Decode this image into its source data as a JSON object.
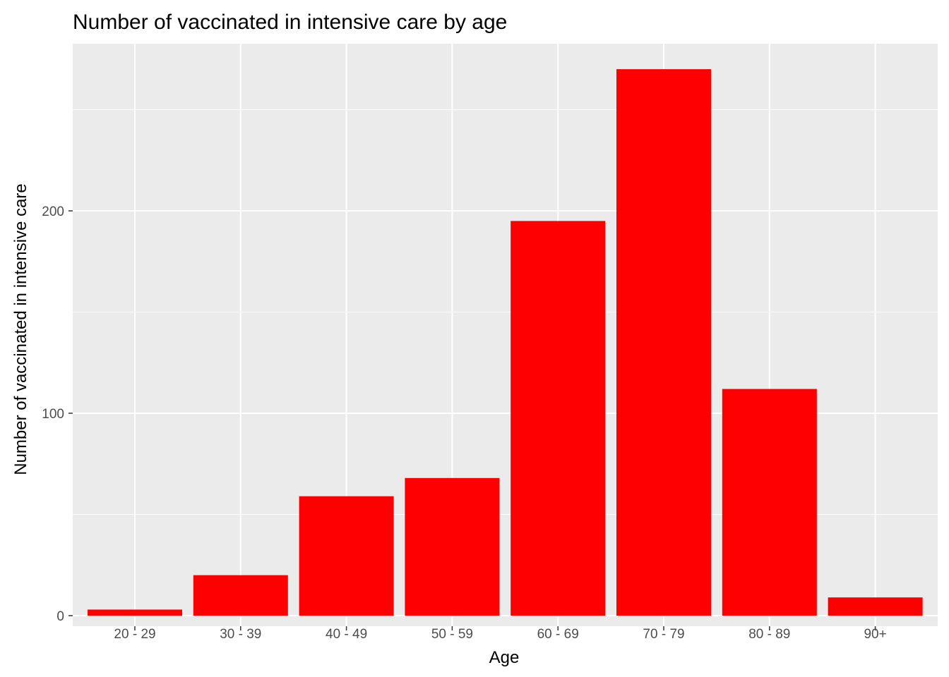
{
  "chart_data": {
    "type": "bar",
    "title": "Number of vaccinated in intensive care by age",
    "xlabel": "Age",
    "ylabel": "Number of vaccinated in intensive care",
    "categories": [
      "20 - 29",
      "30 - 39",
      "40 - 49",
      "50 - 59",
      "60 - 69",
      "70 - 79",
      "80 - 89",
      "90+"
    ],
    "values": [
      3,
      20,
      59,
      68,
      195,
      270,
      112,
      9
    ],
    "ylim": [
      0,
      283
    ],
    "yticks": [
      0,
      100,
      200
    ],
    "y_minor_ticks": [
      50,
      150,
      250
    ],
    "grid": true,
    "legend": "none",
    "colors": {
      "bar": "#ff0000",
      "panel": "#ebebeb",
      "grid": "#ffffff",
      "tick_text": "#4d4d4d",
      "tick_mark": "#333333"
    }
  }
}
